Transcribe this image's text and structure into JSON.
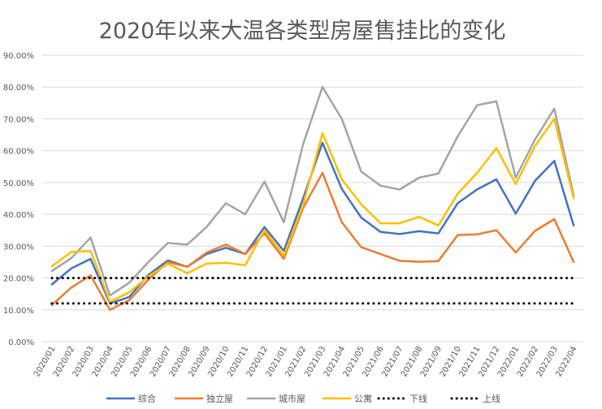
{
  "chart_data": {
    "type": "line",
    "title": "2020年以来大温各类型房屋售挂比的变化",
    "xlabel": "",
    "ylabel": "",
    "ylim": [
      0,
      0.9
    ],
    "y_ticks": [
      "0.00%",
      "10.00%",
      "20.00%",
      "30.00%",
      "40.00%",
      "50.00%",
      "60.00%",
      "70.00%",
      "80.00%",
      "90.00%"
    ],
    "categories": [
      "2020/01",
      "2020/02",
      "2020/03",
      "2020/04",
      "2020/05",
      "2020/06",
      "2020/07",
      "2020/08",
      "2020/09",
      "2020/10",
      "2020/11",
      "2020/12",
      "2021/01",
      "2021/02",
      "2021/03",
      "2021/04",
      "2021/05",
      "2021/06",
      "2021/07",
      "2021/08",
      "2021/09",
      "2021/10",
      "2021/11",
      "2021/12",
      "2022/01",
      "2022/02",
      "2022/03",
      "2022/04"
    ],
    "grid": true,
    "legend_position": "bottom",
    "series": [
      {
        "name": "综合",
        "color": "#4472c4",
        "style": "solid",
        "values": [
          0.18,
          0.23,
          0.26,
          0.12,
          0.14,
          0.21,
          0.255,
          0.235,
          0.275,
          0.295,
          0.275,
          0.36,
          0.285,
          0.45,
          0.625,
          0.48,
          0.39,
          0.345,
          0.338,
          0.347,
          0.34,
          0.435,
          0.478,
          0.51,
          0.402,
          0.505,
          0.568,
          0.365
        ]
      },
      {
        "name": "独立屋",
        "color": "#ed7d31",
        "style": "solid",
        "values": [
          0.115,
          0.17,
          0.208,
          0.1,
          0.13,
          0.195,
          0.25,
          0.235,
          0.28,
          0.305,
          0.275,
          0.34,
          0.26,
          0.42,
          0.53,
          0.375,
          0.297,
          0.275,
          0.254,
          0.251,
          0.253,
          0.335,
          0.337,
          0.35,
          0.28,
          0.348,
          0.385,
          0.25
        ]
      },
      {
        "name": "城市屋",
        "color": "#a5a5a5",
        "style": "solid",
        "values": [
          0.222,
          0.262,
          0.327,
          0.145,
          0.185,
          0.25,
          0.31,
          0.305,
          0.36,
          0.435,
          0.4,
          0.503,
          0.375,
          0.62,
          0.8,
          0.7,
          0.535,
          0.49,
          0.478,
          0.515,
          0.528,
          0.645,
          0.743,
          0.755,
          0.515,
          0.635,
          0.732,
          0.46
        ]
      },
      {
        "name": "公寓",
        "color": "#ffc000",
        "style": "solid",
        "values": [
          0.237,
          0.282,
          0.285,
          0.125,
          0.155,
          0.205,
          0.245,
          0.215,
          0.245,
          0.248,
          0.24,
          0.35,
          0.27,
          0.43,
          0.655,
          0.51,
          0.432,
          0.372,
          0.372,
          0.392,
          0.365,
          0.465,
          0.53,
          0.608,
          0.495,
          0.615,
          0.7,
          0.45
        ]
      },
      {
        "name": "下线",
        "color": "#000000",
        "style": "dotted",
        "values": [
          0.2,
          0.2,
          0.2,
          0.2,
          0.2,
          0.2,
          0.2,
          0.2,
          0.2,
          0.2,
          0.2,
          0.2,
          0.2,
          0.2,
          0.2,
          0.2,
          0.2,
          0.2,
          0.2,
          0.2,
          0.2,
          0.2,
          0.2,
          0.2,
          0.2,
          0.2,
          0.2,
          0.2
        ]
      },
      {
        "name": "上线",
        "color": "#000000",
        "style": "dotted",
        "values": [
          0.12,
          0.12,
          0.12,
          0.12,
          0.12,
          0.12,
          0.12,
          0.12,
          0.12,
          0.12,
          0.12,
          0.12,
          0.12,
          0.12,
          0.12,
          0.12,
          0.12,
          0.12,
          0.12,
          0.12,
          0.12,
          0.12,
          0.12,
          0.12,
          0.12,
          0.12,
          0.12,
          0.12
        ]
      }
    ]
  }
}
